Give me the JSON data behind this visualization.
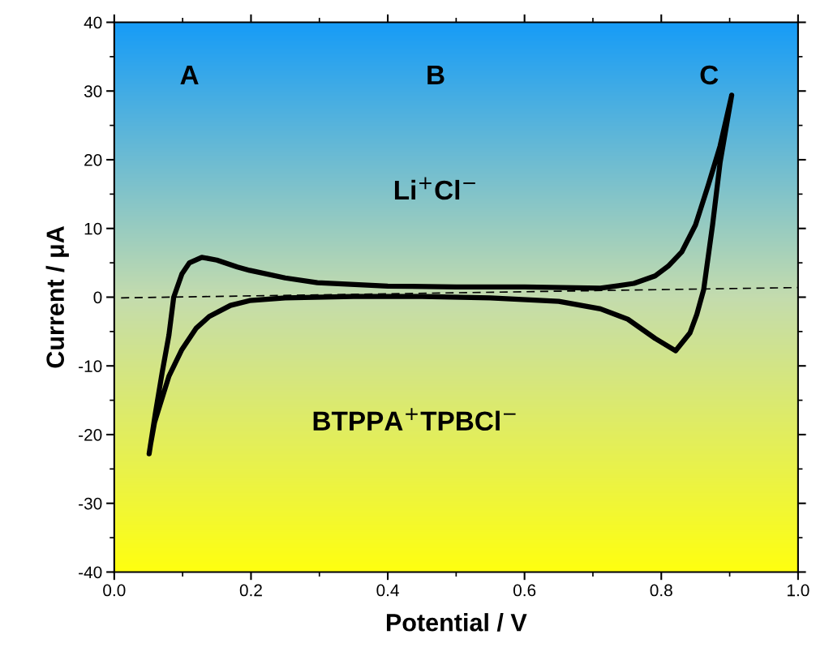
{
  "chart_data": {
    "type": "line",
    "xlabel": "Potential / V",
    "ylabel": "Current / μA",
    "xlim": [
      0.0,
      1.0
    ],
    "ylim": [
      -40,
      40
    ],
    "xticks": [
      {
        "value": 0.0,
        "label": "0.0"
      },
      {
        "value": 0.2,
        "label": "0.2"
      },
      {
        "value": 0.4,
        "label": "0.4"
      },
      {
        "value": 0.6,
        "label": "0.6"
      },
      {
        "value": 0.8,
        "label": "0.8"
      },
      {
        "value": 1.0,
        "label": "1.0"
      }
    ],
    "yticks": [
      -40,
      -30,
      -20,
      -10,
      0,
      10,
      20,
      30,
      40
    ],
    "grid": false,
    "legend": false,
    "marker": "none",
    "series": [
      {
        "color": "#000000",
        "line_style": "solid",
        "x": [
          0.051,
          0.06,
          0.07,
          0.08,
          0.087,
          0.099,
          0.11,
          0.128,
          0.15,
          0.18,
          0.198,
          0.25,
          0.297,
          0.4,
          0.5,
          0.6,
          0.711,
          0.76,
          0.791,
          0.81,
          0.83,
          0.85,
          0.869,
          0.886,
          0.903,
          0.886,
          0.875,
          0.862,
          0.852,
          0.842,
          0.821,
          0.791,
          0.751,
          0.711,
          0.65,
          0.55,
          0.45,
          0.35,
          0.25,
          0.198,
          0.17,
          0.139,
          0.12,
          0.099,
          0.08,
          0.059,
          0.053
        ],
        "values": [
          -22.8,
          -17,
          -11,
          -5.5,
          0,
          3.4,
          5.0,
          5.8,
          5.4,
          4.4,
          3.9,
          2.8,
          2.1,
          1.6,
          1.5,
          1.5,
          1.3,
          2.0,
          3.1,
          4.5,
          6.6,
          10.5,
          16.4,
          22.0,
          29.4,
          19.6,
          10.5,
          1.1,
          -2.5,
          -5.2,
          -7.8,
          -6.0,
          -3.2,
          -1.7,
          -0.6,
          -0.1,
          0.1,
          0.1,
          -0.1,
          -0.5,
          -1.2,
          -2.8,
          -4.5,
          -7.6,
          -11.5,
          -18.2,
          -21.5
        ]
      },
      {
        "color": "#000000",
        "line_style": "dashed",
        "x": [
          0.01,
          1.0
        ],
        "values": [
          -0.1,
          1.4
        ]
      }
    ],
    "annotations": [
      "A",
      "B",
      "C",
      "Li$^{+}$Cl$^{−}$",
      "BTPPA$^{+}$TPBCl$^{−}$"
    ]
  }
}
